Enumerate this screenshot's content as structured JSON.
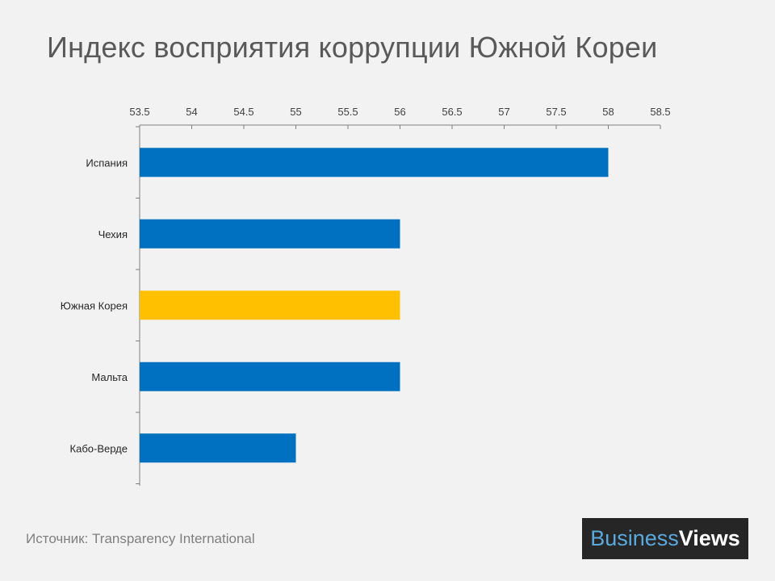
{
  "chart_data": {
    "type": "bar",
    "orientation": "horizontal",
    "title": "Индекс восприятия коррупции Южной Кореи",
    "categories": [
      "Испания",
      "Чехия",
      "Южная Корея",
      "Мальта",
      "Кабо-Верде"
    ],
    "values": [
      58,
      56,
      56,
      56,
      55
    ],
    "xlim": [
      53.5,
      58.5
    ],
    "xticks": [
      "53.5",
      "54",
      "54.5",
      "55",
      "55.5",
      "56",
      "56.5",
      "57",
      "57.5",
      "58",
      "58.5"
    ],
    "xaxis_position": "top",
    "grid": false,
    "legend": "none",
    "colors": {
      "default": "#0070c0",
      "highlight": "#ffc000",
      "axis": "#7f7f7f"
    },
    "highlight_category": "Южная Корея"
  },
  "source": {
    "label": "Источник:",
    "text": "Transparency International"
  },
  "logo": {
    "part1": "Business",
    "part2": "Views"
  }
}
